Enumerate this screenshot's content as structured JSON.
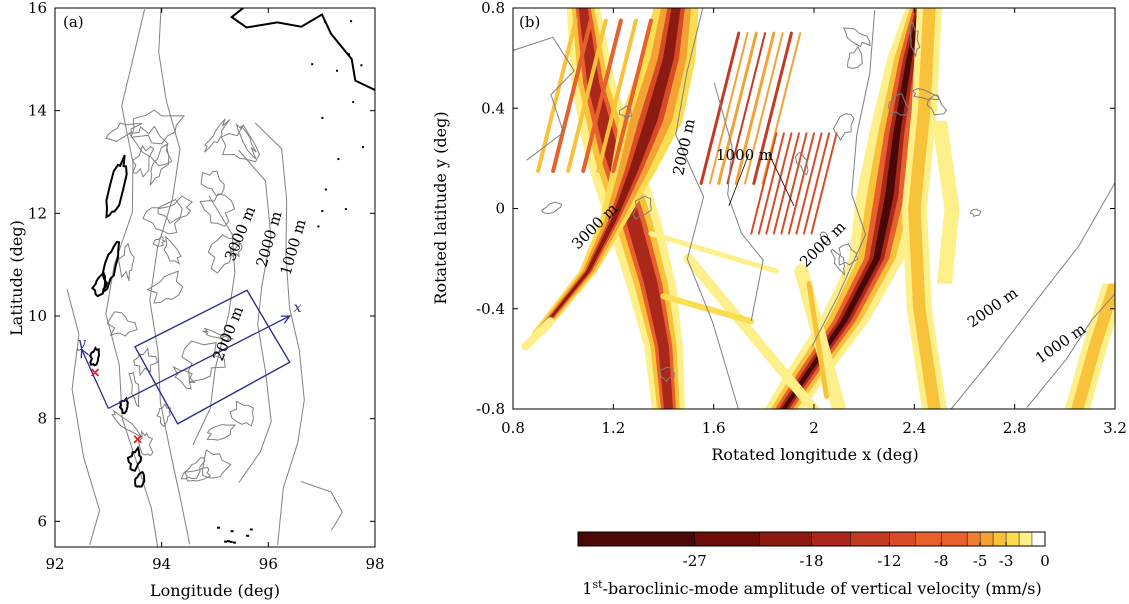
{
  "colors": {
    "bathymetry": "#808080",
    "coastline": "#000000",
    "domain_box": "#2b2f8c",
    "mooring_marker": "#e0202a",
    "colorbar": [
      "#4a0707",
      "#6b0e0a",
      "#8b1a10",
      "#a9281a",
      "#c23a22",
      "#d94a26",
      "#e8602c",
      "#ef7f30",
      "#f4a233",
      "#f8c23a",
      "#fbdd52",
      "#fdf08a",
      "#ffffff"
    ]
  },
  "chart_data": [
    {
      "type": "contour",
      "panel_label": "(a)",
      "xlabel": "Longitude (deg)",
      "ylabel": "Latitude (deg)",
      "xlim": [
        92,
        98
      ],
      "ylim": [
        5.5,
        16
      ],
      "xticks": [
        92,
        94,
        96,
        98
      ],
      "yticks": [
        6,
        8,
        10,
        12,
        14,
        16
      ],
      "contour_labels": [
        "3000 m",
        "2000 m",
        "1000 m",
        "2000 m"
      ],
      "axis_arrow_labels": [
        "x",
        "y"
      ],
      "domain_box": [
        [
          93.5,
          9.4
        ],
        [
          95.6,
          10.5
        ],
        [
          96.4,
          9.1
        ],
        [
          94.3,
          7.9
        ]
      ],
      "rotated_axes_origin": [
        93.0,
        8.2
      ],
      "markers": [
        [
          92.75,
          8.9
        ],
        [
          93.55,
          7.6
        ]
      ]
    },
    {
      "type": "heatmap",
      "panel_label": "(b)",
      "xlabel": "Rotated longitude x (deg)",
      "ylabel": "Rotated latitude y (deg)",
      "xlim": [
        0.8,
        3.2
      ],
      "ylim": [
        -0.8,
        0.8
      ],
      "xticks": [
        "0.8",
        "1.2",
        "1.6",
        "2",
        "2.4",
        "2.8",
        "3.2"
      ],
      "yticks": [
        "-0.8",
        "-0.4",
        "0",
        "0.4",
        "0.8"
      ],
      "contour_labels": [
        "1000 m",
        "2000 m",
        "3000 m",
        "2000 m",
        "2000 m",
        "1000 m"
      ],
      "colorbar": {
        "label": "1st-baroclinic-mode amplitude of vertical velocity (mm/s)",
        "label_prefix": "1",
        "label_sup": "st",
        "label_suffix": "-baroclinic-mode amplitude of vertical velocity (mm/s)",
        "ticks": [
          "-27",
          "-18",
          "-12",
          "-8",
          "-5",
          "-3",
          "0"
        ],
        "levels": [
          -36,
          -27,
          -22,
          -18,
          -15,
          -12,
          -10,
          -8,
          -6,
          -5,
          -4,
          -3,
          -2,
          -1,
          0
        ],
        "range": [
          -36,
          0
        ]
      }
    }
  ]
}
